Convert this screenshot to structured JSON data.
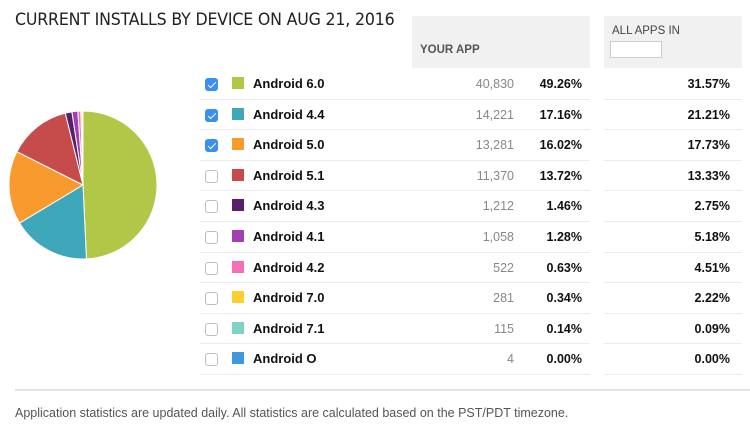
{
  "title": "CURRENT INSTALLS BY DEVICE ON AUG 21, 2016",
  "header": {
    "your_app": "YOUR APP",
    "all_apps_in": "ALL APPS IN",
    "all_apps_in_value": ""
  },
  "rows": [
    {
      "label": "Android 6.0",
      "checked": true,
      "color": "#b2c748",
      "count": "40,830",
      "pct": "49.26%",
      "all_pct": "31.57%"
    },
    {
      "label": "Android 4.4",
      "checked": true,
      "color": "#3ea7b9",
      "count": "14,221",
      "pct": "17.16%",
      "all_pct": "21.21%"
    },
    {
      "label": "Android 5.0",
      "checked": true,
      "color": "#f99a2f",
      "count": "13,281",
      "pct": "16.02%",
      "all_pct": "17.73%"
    },
    {
      "label": "Android 5.1",
      "checked": false,
      "color": "#c64b4b",
      "count": "11,370",
      "pct": "13.72%",
      "all_pct": "13.33%"
    },
    {
      "label": "Android 4.3",
      "checked": false,
      "color": "#5a1f6b",
      "count": "1,212",
      "pct": "1.46%",
      "all_pct": "2.75%"
    },
    {
      "label": "Android 4.1",
      "checked": false,
      "color": "#a23fb3",
      "count": "1,058",
      "pct": "1.28%",
      "all_pct": "5.18%"
    },
    {
      "label": "Android 4.2",
      "checked": false,
      "color": "#f56fb8",
      "count": "522",
      "pct": "0.63%",
      "all_pct": "4.51%"
    },
    {
      "label": "Android 7.0",
      "checked": false,
      "color": "#fdd030",
      "count": "281",
      "pct": "0.34%",
      "all_pct": "2.22%"
    },
    {
      "label": "Android 7.1",
      "checked": false,
      "color": "#7fd3c5",
      "count": "115",
      "pct": "0.14%",
      "all_pct": "0.09%"
    },
    {
      "label": "Android O",
      "checked": false,
      "color": "#3f97dd",
      "count": "4",
      "pct": "0.00%",
      "all_pct": "0.00%"
    }
  ],
  "footer": "Application statistics are updated daily. All statistics are calculated based on the PST/PDT timezone.",
  "chart_data": {
    "type": "pie",
    "title": "CURRENT INSTALLS BY DEVICE ON AUG 21, 2016",
    "categories": [
      "Android 6.0",
      "Android 4.4",
      "Android 5.0",
      "Android 5.1",
      "Android 4.3",
      "Android 4.1",
      "Android 4.2",
      "Android 7.0",
      "Android 7.1",
      "Android O"
    ],
    "values": [
      49.26,
      17.16,
      16.02,
      13.72,
      1.46,
      1.28,
      0.63,
      0.34,
      0.14,
      0.0
    ],
    "counts": [
      40830,
      14221,
      13281,
      11370,
      1212,
      1058,
      522,
      281,
      115,
      4
    ],
    "colors": [
      "#b2c748",
      "#3ea7b9",
      "#f99a2f",
      "#c64b4b",
      "#5a1f6b",
      "#a23fb3",
      "#f56fb8",
      "#fdd030",
      "#7fd3c5",
      "#3f97dd"
    ],
    "legend_position": "right"
  }
}
